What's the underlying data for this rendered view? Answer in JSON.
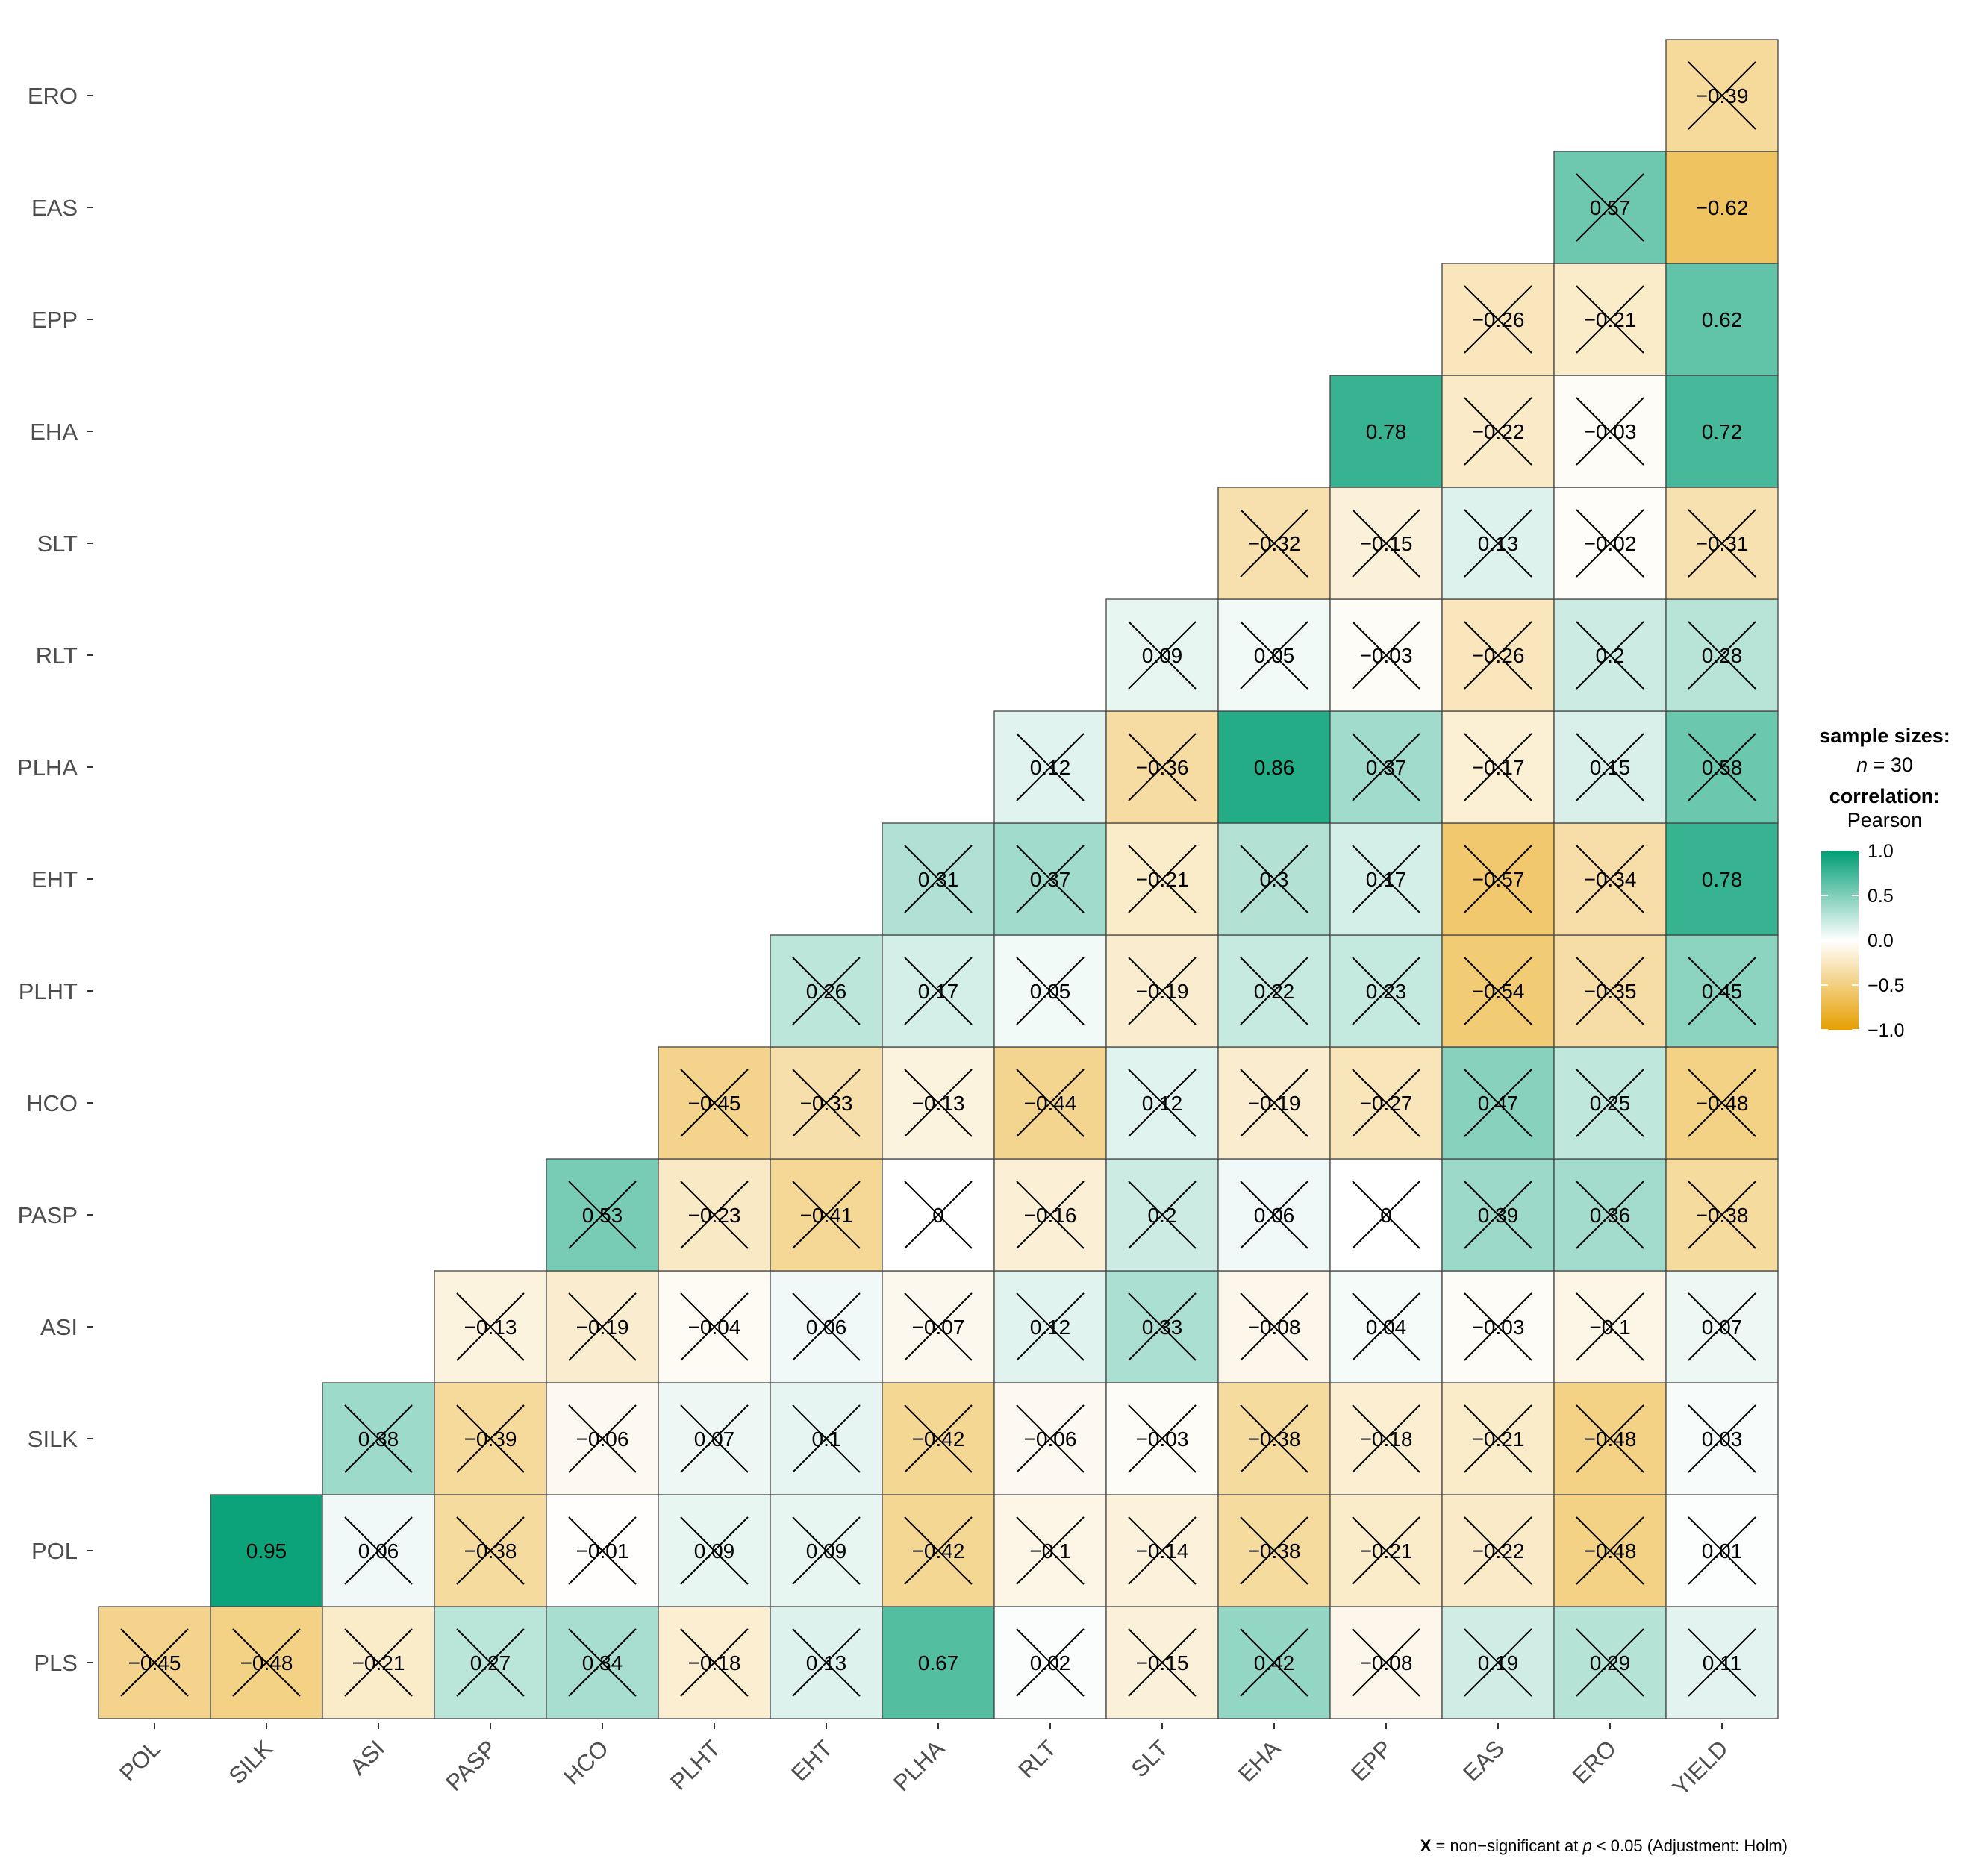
{
  "chart_data": {
    "type": "heatmap",
    "title": "",
    "x_labels": [
      "POL",
      "SILK",
      "ASI",
      "PASP",
      "HCO",
      "PLHT",
      "EHT",
      "PLHA",
      "RLT",
      "SLT",
      "EHA",
      "EPP",
      "EAS",
      "ERO",
      "YIELD"
    ],
    "y_labels": [
      "PLS",
      "POL",
      "SILK",
      "ASI",
      "PASP",
      "HCO",
      "PLHT",
      "EHT",
      "PLHA",
      "RLT",
      "SLT",
      "EHA",
      "EPP",
      "EAS",
      "ERO"
    ],
    "cells": [
      {
        "row": "PLS",
        "col": "POL",
        "value": -0.45,
        "label": "−0.45",
        "ns": true
      },
      {
        "row": "PLS",
        "col": "SILK",
        "value": -0.48,
        "label": "−0.48",
        "ns": true
      },
      {
        "row": "PLS",
        "col": "ASI",
        "value": -0.21,
        "label": "−0.21",
        "ns": true
      },
      {
        "row": "PLS",
        "col": "PASP",
        "value": 0.27,
        "label": "0.27",
        "ns": true
      },
      {
        "row": "PLS",
        "col": "HCO",
        "value": 0.34,
        "label": "0.34",
        "ns": true
      },
      {
        "row": "PLS",
        "col": "PLHT",
        "value": -0.18,
        "label": "−0.18",
        "ns": true
      },
      {
        "row": "PLS",
        "col": "EHT",
        "value": 0.13,
        "label": "0.13",
        "ns": true
      },
      {
        "row": "PLS",
        "col": "PLHA",
        "value": 0.67,
        "label": "0.67",
        "ns": false
      },
      {
        "row": "PLS",
        "col": "RLT",
        "value": 0.02,
        "label": "0.02",
        "ns": true
      },
      {
        "row": "PLS",
        "col": "SLT",
        "value": -0.15,
        "label": "−0.15",
        "ns": true
      },
      {
        "row": "PLS",
        "col": "EHA",
        "value": 0.42,
        "label": "0.42",
        "ns": true
      },
      {
        "row": "PLS",
        "col": "EPP",
        "value": -0.08,
        "label": "−0.08",
        "ns": true
      },
      {
        "row": "PLS",
        "col": "EAS",
        "value": 0.19,
        "label": "0.19",
        "ns": true
      },
      {
        "row": "PLS",
        "col": "ERO",
        "value": 0.29,
        "label": "0.29",
        "ns": true
      },
      {
        "row": "PLS",
        "col": "YIELD",
        "value": 0.11,
        "label": "0.11",
        "ns": true
      },
      {
        "row": "POL",
        "col": "SILK",
        "value": 0.95,
        "label": "0.95",
        "ns": false
      },
      {
        "row": "POL",
        "col": "ASI",
        "value": 0.06,
        "label": "0.06",
        "ns": true
      },
      {
        "row": "POL",
        "col": "PASP",
        "value": -0.38,
        "label": "−0.38",
        "ns": true
      },
      {
        "row": "POL",
        "col": "HCO",
        "value": -0.01,
        "label": "−0.01",
        "ns": true
      },
      {
        "row": "POL",
        "col": "PLHT",
        "value": 0.09,
        "label": "0.09",
        "ns": true
      },
      {
        "row": "POL",
        "col": "EHT",
        "value": 0.09,
        "label": "0.09",
        "ns": true
      },
      {
        "row": "POL",
        "col": "PLHA",
        "value": -0.42,
        "label": "−0.42",
        "ns": true
      },
      {
        "row": "POL",
        "col": "RLT",
        "value": -0.1,
        "label": "−0.1",
        "ns": true
      },
      {
        "row": "POL",
        "col": "SLT",
        "value": -0.14,
        "label": "−0.14",
        "ns": true
      },
      {
        "row": "POL",
        "col": "EHA",
        "value": -0.38,
        "label": "−0.38",
        "ns": true
      },
      {
        "row": "POL",
        "col": "EPP",
        "value": -0.21,
        "label": "−0.21",
        "ns": true
      },
      {
        "row": "POL",
        "col": "EAS",
        "value": -0.22,
        "label": "−0.22",
        "ns": true
      },
      {
        "row": "POL",
        "col": "ERO",
        "value": -0.48,
        "label": "−0.48",
        "ns": true
      },
      {
        "row": "POL",
        "col": "YIELD",
        "value": 0.01,
        "label": "0.01",
        "ns": true
      },
      {
        "row": "SILK",
        "col": "ASI",
        "value": 0.38,
        "label": "0.38",
        "ns": true
      },
      {
        "row": "SILK",
        "col": "PASP",
        "value": -0.39,
        "label": "−0.39",
        "ns": true
      },
      {
        "row": "SILK",
        "col": "HCO",
        "value": -0.06,
        "label": "−0.06",
        "ns": true
      },
      {
        "row": "SILK",
        "col": "PLHT",
        "value": 0.07,
        "label": "0.07",
        "ns": true
      },
      {
        "row": "SILK",
        "col": "EHT",
        "value": 0.1,
        "label": "0.1",
        "ns": true
      },
      {
        "row": "SILK",
        "col": "PLHA",
        "value": -0.42,
        "label": "−0.42",
        "ns": true
      },
      {
        "row": "SILK",
        "col": "RLT",
        "value": -0.06,
        "label": "−0.06",
        "ns": true
      },
      {
        "row": "SILK",
        "col": "SLT",
        "value": -0.03,
        "label": "−0.03",
        "ns": true
      },
      {
        "row": "SILK",
        "col": "EHA",
        "value": -0.38,
        "label": "−0.38",
        "ns": true
      },
      {
        "row": "SILK",
        "col": "EPP",
        "value": -0.18,
        "label": "−0.18",
        "ns": true
      },
      {
        "row": "SILK",
        "col": "EAS",
        "value": -0.21,
        "label": "−0.21",
        "ns": true
      },
      {
        "row": "SILK",
        "col": "ERO",
        "value": -0.48,
        "label": "−0.48",
        "ns": true
      },
      {
        "row": "SILK",
        "col": "YIELD",
        "value": 0.03,
        "label": "0.03",
        "ns": true
      },
      {
        "row": "ASI",
        "col": "PASP",
        "value": -0.13,
        "label": "−0.13",
        "ns": true
      },
      {
        "row": "ASI",
        "col": "HCO",
        "value": -0.19,
        "label": "−0.19",
        "ns": true
      },
      {
        "row": "ASI",
        "col": "PLHT",
        "value": -0.04,
        "label": "−0.04",
        "ns": true
      },
      {
        "row": "ASI",
        "col": "EHT",
        "value": 0.06,
        "label": "0.06",
        "ns": true
      },
      {
        "row": "ASI",
        "col": "PLHA",
        "value": -0.07,
        "label": "−0.07",
        "ns": true
      },
      {
        "row": "ASI",
        "col": "RLT",
        "value": 0.12,
        "label": "0.12",
        "ns": true
      },
      {
        "row": "ASI",
        "col": "SLT",
        "value": 0.33,
        "label": "0.33",
        "ns": true
      },
      {
        "row": "ASI",
        "col": "EHA",
        "value": -0.08,
        "label": "−0.08",
        "ns": true
      },
      {
        "row": "ASI",
        "col": "EPP",
        "value": 0.04,
        "label": "0.04",
        "ns": true
      },
      {
        "row": "ASI",
        "col": "EAS",
        "value": -0.03,
        "label": "−0.03",
        "ns": true
      },
      {
        "row": "ASI",
        "col": "ERO",
        "value": -0.1,
        "label": "−0.1",
        "ns": true
      },
      {
        "row": "ASI",
        "col": "YIELD",
        "value": 0.07,
        "label": "0.07",
        "ns": true
      },
      {
        "row": "PASP",
        "col": "HCO",
        "value": 0.53,
        "label": "0.53",
        "ns": true
      },
      {
        "row": "PASP",
        "col": "PLHT",
        "value": -0.23,
        "label": "−0.23",
        "ns": true
      },
      {
        "row": "PASP",
        "col": "EHT",
        "value": -0.41,
        "label": "−0.41",
        "ns": true
      },
      {
        "row": "PASP",
        "col": "PLHA",
        "value": 0,
        "label": "0",
        "ns": true
      },
      {
        "row": "PASP",
        "col": "RLT",
        "value": -0.16,
        "label": "−0.16",
        "ns": true
      },
      {
        "row": "PASP",
        "col": "SLT",
        "value": 0.2,
        "label": "0.2",
        "ns": true
      },
      {
        "row": "PASP",
        "col": "EHA",
        "value": 0.06,
        "label": "0.06",
        "ns": true
      },
      {
        "row": "PASP",
        "col": "EPP",
        "value": 0,
        "label": "0",
        "ns": true
      },
      {
        "row": "PASP",
        "col": "EAS",
        "value": 0.39,
        "label": "0.39",
        "ns": true
      },
      {
        "row": "PASP",
        "col": "ERO",
        "value": 0.36,
        "label": "0.36",
        "ns": true
      },
      {
        "row": "PASP",
        "col": "YIELD",
        "value": -0.38,
        "label": "−0.38",
        "ns": true
      },
      {
        "row": "HCO",
        "col": "PLHT",
        "value": -0.45,
        "label": "−0.45",
        "ns": true
      },
      {
        "row": "HCO",
        "col": "EHT",
        "value": -0.33,
        "label": "−0.33",
        "ns": true
      },
      {
        "row": "HCO",
        "col": "PLHA",
        "value": -0.13,
        "label": "−0.13",
        "ns": true
      },
      {
        "row": "HCO",
        "col": "RLT",
        "value": -0.44,
        "label": "−0.44",
        "ns": true
      },
      {
        "row": "HCO",
        "col": "SLT",
        "value": 0.12,
        "label": "0.12",
        "ns": true
      },
      {
        "row": "HCO",
        "col": "EHA",
        "value": -0.19,
        "label": "−0.19",
        "ns": true
      },
      {
        "row": "HCO",
        "col": "EPP",
        "value": -0.27,
        "label": "−0.27",
        "ns": true
      },
      {
        "row": "HCO",
        "col": "EAS",
        "value": 0.47,
        "label": "0.47",
        "ns": true
      },
      {
        "row": "HCO",
        "col": "ERO",
        "value": 0.25,
        "label": "0.25",
        "ns": true
      },
      {
        "row": "HCO",
        "col": "YIELD",
        "value": -0.48,
        "label": "−0.48",
        "ns": true
      },
      {
        "row": "PLHT",
        "col": "EHT",
        "value": 0.26,
        "label": "0.26",
        "ns": true
      },
      {
        "row": "PLHT",
        "col": "PLHA",
        "value": 0.17,
        "label": "0.17",
        "ns": true
      },
      {
        "row": "PLHT",
        "col": "RLT",
        "value": 0.05,
        "label": "0.05",
        "ns": true
      },
      {
        "row": "PLHT",
        "col": "SLT",
        "value": -0.19,
        "label": "−0.19",
        "ns": true
      },
      {
        "row": "PLHT",
        "col": "EHA",
        "value": 0.22,
        "label": "0.22",
        "ns": true
      },
      {
        "row": "PLHT",
        "col": "EPP",
        "value": 0.23,
        "label": "0.23",
        "ns": true
      },
      {
        "row": "PLHT",
        "col": "EAS",
        "value": -0.54,
        "label": "−0.54",
        "ns": true
      },
      {
        "row": "PLHT",
        "col": "ERO",
        "value": -0.35,
        "label": "−0.35",
        "ns": true
      },
      {
        "row": "PLHT",
        "col": "YIELD",
        "value": 0.45,
        "label": "0.45",
        "ns": true
      },
      {
        "row": "EHT",
        "col": "PLHA",
        "value": 0.31,
        "label": "0.31",
        "ns": true
      },
      {
        "row": "EHT",
        "col": "RLT",
        "value": 0.37,
        "label": "0.37",
        "ns": true
      },
      {
        "row": "EHT",
        "col": "SLT",
        "value": -0.21,
        "label": "−0.21",
        "ns": true
      },
      {
        "row": "EHT",
        "col": "EHA",
        "value": 0.3,
        "label": "0.3",
        "ns": true
      },
      {
        "row": "EHT",
        "col": "EPP",
        "value": 0.17,
        "label": "0.17",
        "ns": true
      },
      {
        "row": "EHT",
        "col": "EAS",
        "value": -0.57,
        "label": "−0.57",
        "ns": true
      },
      {
        "row": "EHT",
        "col": "ERO",
        "value": -0.34,
        "label": "−0.34",
        "ns": true
      },
      {
        "row": "EHT",
        "col": "YIELD",
        "value": 0.78,
        "label": "0.78",
        "ns": false
      },
      {
        "row": "PLHA",
        "col": "RLT",
        "value": 0.12,
        "label": "0.12",
        "ns": true
      },
      {
        "row": "PLHA",
        "col": "SLT",
        "value": -0.36,
        "label": "−0.36",
        "ns": true
      },
      {
        "row": "PLHA",
        "col": "EHA",
        "value": 0.86,
        "label": "0.86",
        "ns": false
      },
      {
        "row": "PLHA",
        "col": "EPP",
        "value": 0.37,
        "label": "0.37",
        "ns": true
      },
      {
        "row": "PLHA",
        "col": "EAS",
        "value": -0.17,
        "label": "−0.17",
        "ns": true
      },
      {
        "row": "PLHA",
        "col": "ERO",
        "value": 0.15,
        "label": "0.15",
        "ns": true
      },
      {
        "row": "PLHA",
        "col": "YIELD",
        "value": 0.58,
        "label": "0.58",
        "ns": true
      },
      {
        "row": "RLT",
        "col": "SLT",
        "value": 0.09,
        "label": "0.09",
        "ns": true
      },
      {
        "row": "RLT",
        "col": "EHA",
        "value": 0.05,
        "label": "0.05",
        "ns": true
      },
      {
        "row": "RLT",
        "col": "EPP",
        "value": -0.03,
        "label": "−0.03",
        "ns": true
      },
      {
        "row": "RLT",
        "col": "EAS",
        "value": -0.26,
        "label": "−0.26",
        "ns": true
      },
      {
        "row": "RLT",
        "col": "ERO",
        "value": 0.2,
        "label": "0.2",
        "ns": true
      },
      {
        "row": "RLT",
        "col": "YIELD",
        "value": 0.28,
        "label": "0.28",
        "ns": true
      },
      {
        "row": "SLT",
        "col": "EHA",
        "value": -0.32,
        "label": "−0.32",
        "ns": true
      },
      {
        "row": "SLT",
        "col": "EPP",
        "value": -0.15,
        "label": "−0.15",
        "ns": true
      },
      {
        "row": "SLT",
        "col": "EAS",
        "value": 0.13,
        "label": "0.13",
        "ns": true
      },
      {
        "row": "SLT",
        "col": "ERO",
        "value": -0.02,
        "label": "−0.02",
        "ns": true
      },
      {
        "row": "SLT",
        "col": "YIELD",
        "value": -0.31,
        "label": "−0.31",
        "ns": true
      },
      {
        "row": "EHA",
        "col": "EPP",
        "value": 0.78,
        "label": "0.78",
        "ns": false
      },
      {
        "row": "EHA",
        "col": "EAS",
        "value": -0.22,
        "label": "−0.22",
        "ns": true
      },
      {
        "row": "EHA",
        "col": "ERO",
        "value": -0.03,
        "label": "−0.03",
        "ns": true
      },
      {
        "row": "EHA",
        "col": "YIELD",
        "value": 0.72,
        "label": "0.72",
        "ns": false
      },
      {
        "row": "EPP",
        "col": "EAS",
        "value": -0.26,
        "label": "−0.26",
        "ns": true
      },
      {
        "row": "EPP",
        "col": "ERO",
        "value": -0.21,
        "label": "−0.21",
        "ns": true
      },
      {
        "row": "EPP",
        "col": "YIELD",
        "value": 0.62,
        "label": "0.62",
        "ns": false
      },
      {
        "row": "EAS",
        "col": "ERO",
        "value": 0.57,
        "label": "0.57",
        "ns": true
      },
      {
        "row": "EAS",
        "col": "YIELD",
        "value": -0.62,
        "label": "−0.62",
        "ns": false
      },
      {
        "row": "ERO",
        "col": "YIELD",
        "value": -0.39,
        "label": "−0.39",
        "ns": true
      }
    ],
    "color_scale": {
      "low": "#E69F00",
      "mid": "#FFFFFF",
      "high": "#009E73",
      "min": -1,
      "max": 1
    },
    "legend": {
      "position": "right",
      "sample_title": "sample sizes:",
      "n_symbol": "n",
      "n_rest": " = 30",
      "corr_title": "correlation:",
      "corr_method": "Pearson",
      "ticks": [
        "1.0",
        "0.5",
        "0.0",
        "−0.5",
        "−1.0"
      ],
      "tick_values": [
        1.0,
        0.5,
        0.0,
        -0.5,
        -1.0
      ]
    },
    "caption": {
      "x_mark": "X",
      "part1": " = non−significant at ",
      "p": "p",
      "part2": " < 0.05 (Adjustment: Holm)"
    }
  }
}
